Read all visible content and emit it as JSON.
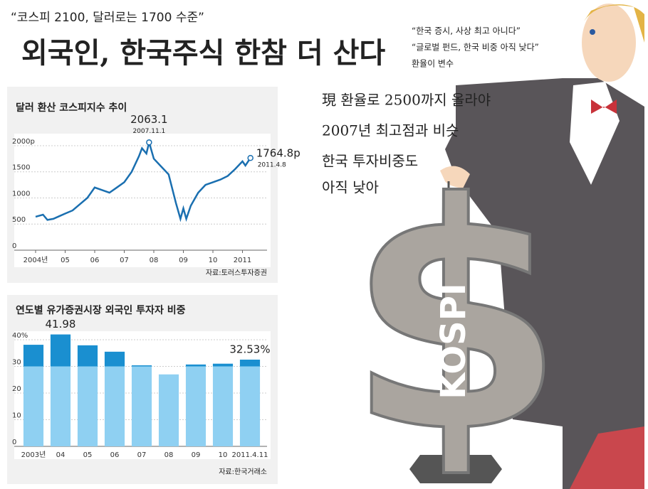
{
  "kicker": "“코스피 2100, 달러로는 1700 수준”",
  "headline": "외국인, 한국주식 한참 더 산다",
  "bullets": [
    "“한국 증시, 사상 최고 아니다”",
    "“글로벌 펀드, 한국 비중 아직 낮다”",
    "환율이 변수"
  ],
  "callouts": [
    "現 환율로 2500까지 올라야",
    "2007년 최고점과 비슷",
    "한국 투자비중도",
    "아직 낮아"
  ],
  "illustration_label": "KOSPI",
  "chart_data": [
    {
      "type": "line",
      "title": "달러 환산 코스피지수 추이",
      "x": [
        2004.0,
        2004.25,
        2004.4,
        2004.6,
        2004.8,
        2005.0,
        2005.25,
        2005.5,
        2005.75,
        2006.0,
        2006.25,
        2006.5,
        2006.75,
        2007.0,
        2007.25,
        2007.5,
        2007.6,
        2007.75,
        2007.84,
        2008.0,
        2008.25,
        2008.5,
        2008.75,
        2008.9,
        2009.0,
        2009.1,
        2009.25,
        2009.5,
        2009.75,
        2010.0,
        2010.25,
        2010.5,
        2010.75,
        2011.0,
        2011.1,
        2011.27
      ],
      "values": [
        640,
        680,
        580,
        600,
        650,
        700,
        760,
        880,
        1000,
        1200,
        1150,
        1100,
        1200,
        1300,
        1500,
        1800,
        1950,
        1850,
        2063.1,
        1750,
        1600,
        1450,
        900,
        600,
        800,
        600,
        850,
        1100,
        1250,
        1300,
        1350,
        1420,
        1550,
        1700,
        1620,
        1764.8
      ],
      "value_labels": [
        null,
        null,
        null,
        null,
        null,
        null,
        null,
        null,
        null,
        null,
        null,
        null,
        null,
        null,
        null,
        null,
        null,
        null,
        "2063.1",
        null,
        null,
        null,
        null,
        null,
        null,
        null,
        null,
        null,
        null,
        null,
        null,
        null,
        null,
        null,
        null,
        "1764.8p"
      ],
      "annotations": [
        "2007.11.1",
        "2011.4.8"
      ],
      "color": "#1a6fb0",
      "xlim": [
        2003.9,
        2011.6
      ],
      "xticks": [
        {
          "value": 2004,
          "label": "2004년"
        },
        {
          "value": 2005,
          "label": "05"
        },
        {
          "value": 2006,
          "label": "06"
        },
        {
          "value": 2007,
          "label": "07"
        },
        {
          "value": 2008,
          "label": "08"
        },
        {
          "value": 2009,
          "label": "09"
        },
        {
          "value": 2010,
          "label": "10"
        },
        2011
      ],
      "ylim": [
        0,
        2100
      ],
      "yticks": [
        0,
        500,
        1000,
        1500,
        {
          "value": 2000,
          "label": "2000p"
        }
      ],
      "source": "자료:토러스투자증권"
    },
    {
      "type": "bar",
      "title": "연도별 유가증권시장 외국인 투자자 비중",
      "categories": [
        "2003년",
        "04",
        "05",
        "06",
        "07",
        "08",
        "09",
        "10",
        "2011.4.11"
      ],
      "values": [
        38.1,
        41.98,
        37.9,
        35.5,
        30.4,
        27.0,
        30.7,
        31.0,
        32.53
      ],
      "value_labels": [
        null,
        "41.98",
        null,
        null,
        null,
        null,
        null,
        null,
        "32.53%"
      ],
      "color": "#8fd0f2",
      "top_color": "#1a8fd0",
      "ylim": [
        0,
        44
      ],
      "yticks": [
        0,
        10,
        20,
        30,
        {
          "value": 40,
          "label": "40%"
        }
      ],
      "source": "자료:한국거래소"
    }
  ]
}
